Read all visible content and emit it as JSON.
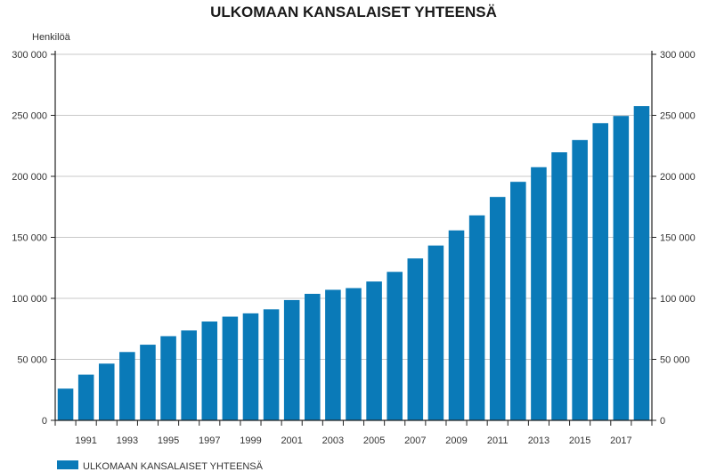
{
  "colors": {
    "bar": "#0a7ab8",
    "grid": "#c8c8c8",
    "axis": "#222222"
  },
  "chart_data": {
    "type": "bar",
    "title": "ULKOMAAN KANSALAISET YHTEENSÄ",
    "ylabel": "Henkilöä",
    "xlabel": "",
    "ylim": [
      0,
      300000
    ],
    "yticks": [
      0,
      50000,
      100000,
      150000,
      200000,
      250000,
      300000
    ],
    "ytick_labels": [
      "0",
      "50 000",
      "100 000",
      "150 000",
      "200 000",
      "250 000",
      "300 000"
    ],
    "categories": [
      "1990",
      "1991",
      "1992",
      "1993",
      "1994",
      "1995",
      "1996",
      "1997",
      "1998",
      "1999",
      "2000",
      "2001",
      "2002",
      "2003",
      "2004",
      "2005",
      "2006",
      "2007",
      "2008",
      "2009",
      "2010",
      "2011",
      "2012",
      "2013",
      "2014",
      "2015",
      "2016",
      "2017",
      "2018"
    ],
    "xtick_labels": [
      "1991",
      "1993",
      "1995",
      "1997",
      "1999",
      "2001",
      "2003",
      "2005",
      "2007",
      "2009",
      "2011",
      "2013",
      "2015",
      "2017"
    ],
    "series": [
      {
        "name": "ULKOMAAN KANSALAISET YHTEENSÄ",
        "values": [
          26000,
          37500,
          46500,
          56000,
          62000,
          69000,
          73700,
          81000,
          85000,
          87700,
          91000,
          98600,
          103700,
          107000,
          108400,
          113800,
          121700,
          132700,
          143300,
          155700,
          168000,
          183100,
          195500,
          207500,
          219700,
          229800,
          243600,
          249500,
          257600
        ]
      }
    ],
    "grid": true,
    "secondary_y_axis": true,
    "legend": "bottom-left"
  }
}
